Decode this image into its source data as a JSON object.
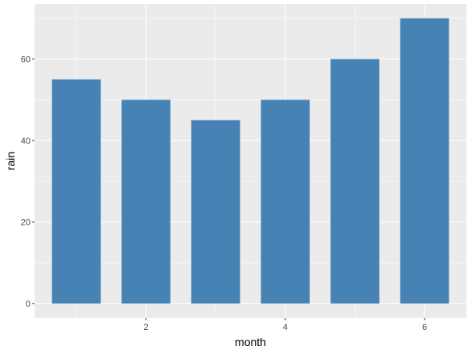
{
  "chart_data": {
    "type": "bar",
    "title": "",
    "xlabel": "month",
    "ylabel": "rain",
    "x": [
      1,
      2,
      3,
      4,
      5,
      6
    ],
    "values": [
      55,
      50,
      45,
      50,
      60,
      70
    ],
    "xlim": [
      0.4,
      6.6
    ],
    "ylim": [
      -3.5,
      73.5
    ],
    "x_ticks": [
      2,
      4,
      6
    ],
    "y_ticks": [
      0,
      20,
      40,
      60
    ],
    "x_minor_ticks": [
      1,
      3,
      5
    ],
    "y_minor_ticks": [
      10,
      30,
      50,
      70
    ],
    "grid": true,
    "legend": "none",
    "colors": {
      "bar": "#4682B4",
      "panel": "#EBEBEB",
      "grid": "#FFFFFF",
      "tick_text": "#4D4D4D",
      "tick_mark": "#333333"
    }
  }
}
